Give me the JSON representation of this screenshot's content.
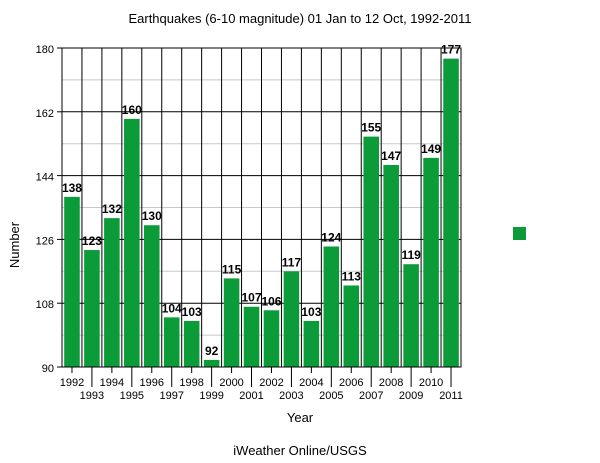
{
  "chart_data": {
    "type": "bar",
    "title": "Earthquakes (6-10 magnitude) 01 Jan to 12 Oct, 1992-2011",
    "xlabel": "Year",
    "ylabel": "Number",
    "source": "iWeather Online/USGS",
    "ylim": [
      90,
      180
    ],
    "yticks": [
      "90",
      "108",
      "126",
      "144",
      "162",
      "180"
    ],
    "categories": [
      "1992",
      "1993",
      "1994",
      "1995",
      "1996",
      "1997",
      "1998",
      "1999",
      "2000",
      "2001",
      "2002",
      "2003",
      "2004",
      "2005",
      "2006",
      "2007",
      "2008",
      "2009",
      "2010",
      "2011"
    ],
    "values": [
      138,
      123,
      132,
      160,
      130,
      104,
      103,
      92,
      115,
      107,
      106,
      117,
      103,
      124,
      113,
      155,
      147,
      119,
      149,
      177
    ],
    "bar_color": "#0b9b38",
    "grid": true,
    "legend": {
      "placement": "right",
      "entries": [
        {
          "name": "",
          "color": "#0b9b38"
        }
      ]
    }
  }
}
